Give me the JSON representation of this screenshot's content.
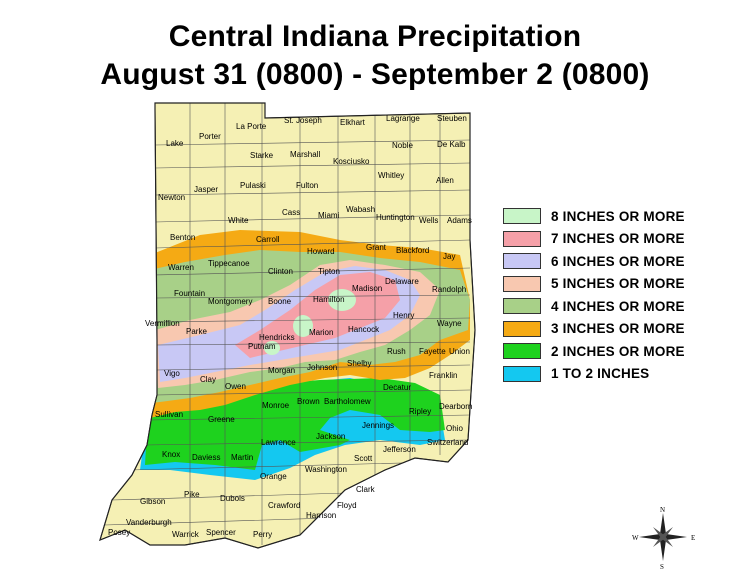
{
  "title": {
    "line1": "Central Indiana Precipitation",
    "line2": "August 31 (0800) - September 2 (0800)"
  },
  "legend": [
    {
      "label": "8 INCHES OR MORE",
      "color": "#c8f5c8"
    },
    {
      "label": "7 INCHES OR MORE",
      "color": "#f5a0a8"
    },
    {
      "label": "6 INCHES OR MORE",
      "color": "#c8c8f5"
    },
    {
      "label": "5 INCHES OR MORE",
      "color": "#f8c8b0"
    },
    {
      "label": "4 INCHES OR MORE",
      "color": "#a8d088"
    },
    {
      "label": "3 INCHES OR MORE",
      "color": "#f5aa14"
    },
    {
      "label": "2 INCHES OR MORE",
      "color": "#1ed21e"
    },
    {
      "label": "1 TO 2 INCHES",
      "color": "#14c8f0"
    }
  ],
  "base_color": "#f5f0b4",
  "counties": [
    "St. Joseph",
    "Elkhart",
    "Lagrange",
    "Steuben",
    "La Porte",
    "Porter",
    "Lake",
    "Starke",
    "Marshall",
    "Kosciusko",
    "Noble",
    "De Kalb",
    "Whitley",
    "Allen",
    "Fulton",
    "Pulaski",
    "Jasper",
    "Newton",
    "Cass",
    "Miami",
    "Wabash",
    "Huntington",
    "Wells",
    "Adams",
    "White",
    "Benton",
    "Carroll",
    "Howard",
    "Grant",
    "Blackford",
    "Jay",
    "Warren",
    "Tippecanoe",
    "Clinton",
    "Tipton",
    "Madison",
    "Delaware",
    "Randolph",
    "Fountain",
    "Montgomery",
    "Boone",
    "Hamilton",
    "Henry",
    "Vermillion",
    "Parke",
    "Hendricks",
    "Marion",
    "Hancock",
    "Wayne",
    "Putnam",
    "Fayette",
    "Union",
    "Rush",
    "Shelby",
    "Morgan",
    "Johnson",
    "Vigo",
    "Clay",
    "Owen",
    "Franklin",
    "Decatur",
    "Sullivan",
    "Greene",
    "Monroe",
    "Brown",
    "Bartholomew",
    "Dearborn",
    "Ripley",
    "Jennings",
    "Ohio",
    "Lawrence",
    "Jackson",
    "Switzerland",
    "Knox",
    "Daviess",
    "Martin",
    "Jefferson",
    "Scott",
    "Washington",
    "Orange",
    "Clark",
    "Gibson",
    "Pike",
    "Dubois",
    "Crawford",
    "Floyd",
    "Harrison",
    "Vanderburgh",
    "Posey",
    "Warrick",
    "Spencer",
    "Perry"
  ],
  "compass": {
    "n": "N",
    "s": "S",
    "e": "E",
    "w": "W"
  }
}
